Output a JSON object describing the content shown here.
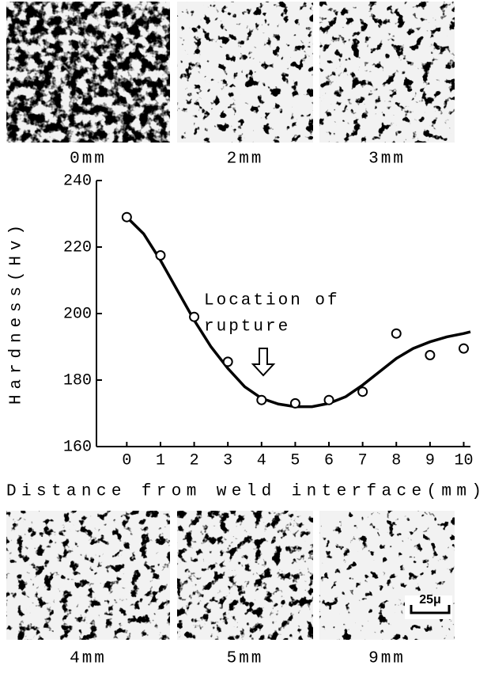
{
  "chart_data": {
    "type": "scatter",
    "y_label": "Hardness(Hv)",
    "x_label": "Distance from weld interface(mm)",
    "annotation": [
      "Location of",
      "rupture"
    ],
    "xlim": [
      -0.9,
      10.2
    ],
    "xticks": [
      0,
      1,
      2,
      3,
      4,
      5,
      6,
      7,
      8,
      9,
      10
    ],
    "ylim": [
      160,
      240
    ],
    "yticks": [
      160,
      180,
      200,
      220,
      240
    ],
    "series": [
      {
        "type": "scatter",
        "color": "#000000",
        "x": [
          0,
          1,
          2,
          3,
          4,
          5,
          6,
          7,
          8,
          9,
          10
        ],
        "values": [
          229,
          217.5,
          199,
          185.5,
          174,
          173,
          174,
          176.5,
          194,
          187.5,
          189.5
        ]
      },
      {
        "type": "line",
        "color": "#000000",
        "x": [
          0,
          0.5,
          1,
          1.5,
          2,
          2.5,
          3,
          3.5,
          4,
          4.5,
          5,
          5.5,
          6,
          6.5,
          7,
          7.5,
          8,
          8.5,
          9,
          9.5,
          10,
          10.2
        ],
        "values": [
          229,
          224,
          216,
          207,
          198,
          190,
          183.5,
          178,
          174.5,
          172.8,
          172,
          172,
          173,
          175,
          178.5,
          182.5,
          186.5,
          189.5,
          191.5,
          193,
          194,
          194.5
        ]
      }
    ]
  },
  "micrographs": {
    "top": [
      {
        "label": "0mm"
      },
      {
        "label": "2mm"
      },
      {
        "label": "3mm"
      }
    ],
    "bottom": [
      {
        "label": "4mm"
      },
      {
        "label": "5mm"
      },
      {
        "label": "9mm"
      }
    ],
    "scale_bar": "25μ"
  }
}
